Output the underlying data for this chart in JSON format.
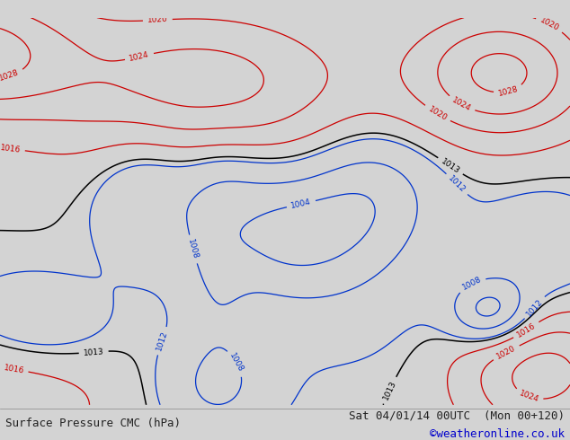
{
  "title_left": "Surface Pressure CMC (hPa)",
  "title_right": "Sat 04/01/14 00UTC  (Mon 00+120)",
  "credit": "©weatheronline.co.uk",
  "land_color": [
    0.71,
    0.87,
    0.62,
    1.0
  ],
  "sea_color": [
    0.82,
    0.82,
    0.82,
    1.0
  ],
  "isobar_red": "#cc0000",
  "isobar_blue": "#0033cc",
  "isobar_black": "#000000",
  "footer_fg": "#222222",
  "credit_color": "#0000cc",
  "footer_fontsize": 9,
  "label_fontsize": 6.5,
  "lon_min": -30,
  "lon_max": 70,
  "lat_min": -42,
  "lat_max": 42
}
